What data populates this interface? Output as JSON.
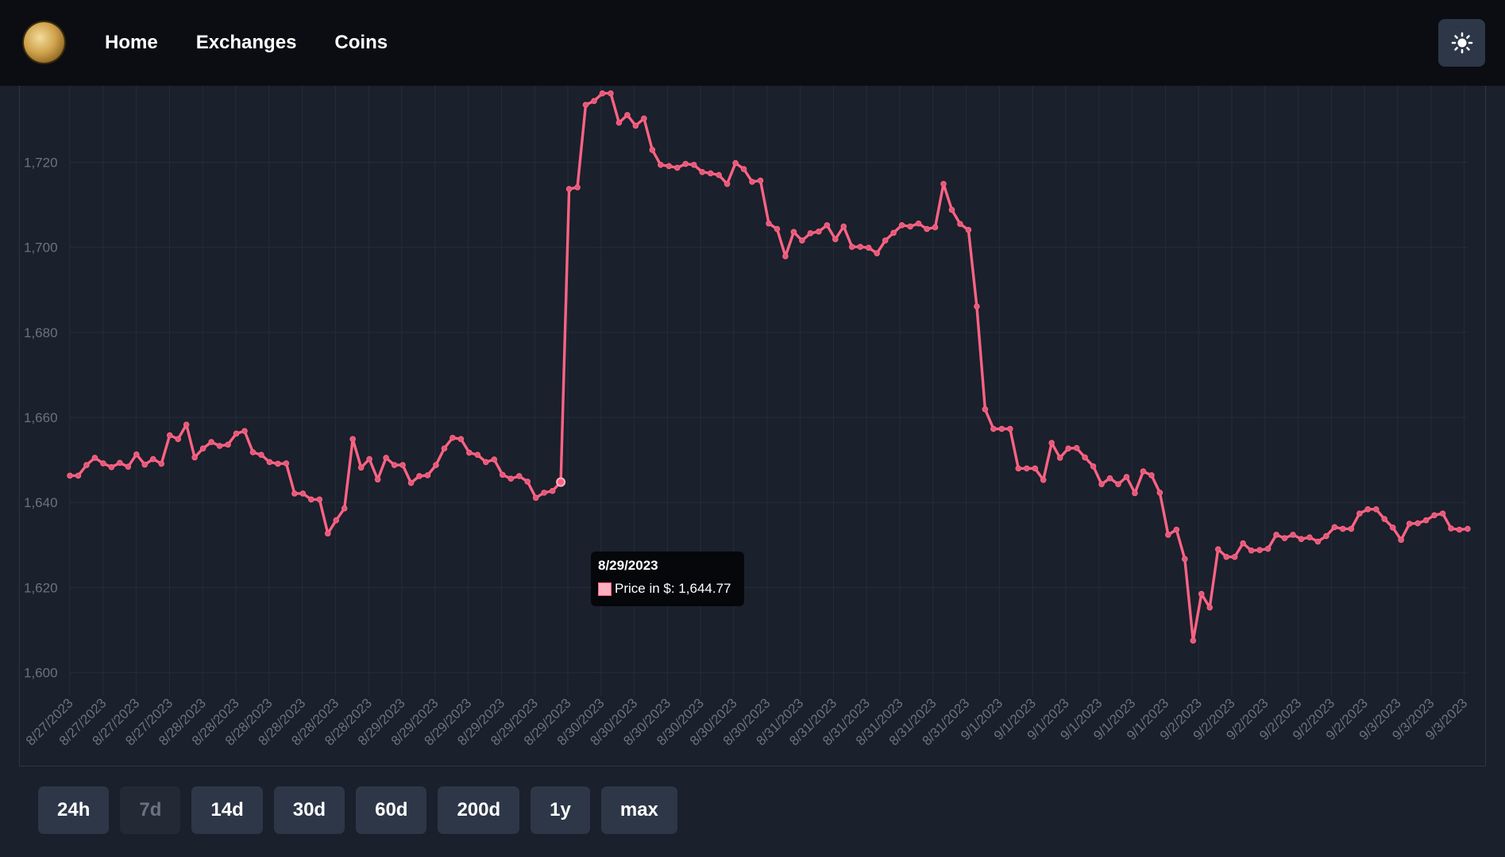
{
  "navbar": {
    "logo": "coin-logo-icon",
    "links": [
      "Home",
      "Exchanges",
      "Coins"
    ],
    "theme_toggle_icon": "sun-icon"
  },
  "chart_data": {
    "type": "line",
    "series": [
      {
        "name": "Price in $",
        "color": "#ff6384",
        "values": [
          1646.3,
          1646.3,
          1648.8,
          1650.5,
          1649.2,
          1648.3,
          1649.3,
          1648.4,
          1651.3,
          1648.9,
          1650.2,
          1649.1,
          1655.8,
          1654.9,
          1658.3,
          1650.6,
          1652.7,
          1654.2,
          1653.3,
          1653.6,
          1656.2,
          1656.8,
          1651.8,
          1651.2,
          1649.5,
          1649.1,
          1649.2,
          1642.1,
          1642.1,
          1640.7,
          1640.7,
          1632.7,
          1635.8,
          1638.6,
          1654.9,
          1648.2,
          1650.2,
          1645.4,
          1650.5,
          1648.8,
          1648.8,
          1644.6,
          1646.2,
          1646.4,
          1648.8,
          1652.7,
          1655.2,
          1654.9,
          1651.7,
          1651.2,
          1649.5,
          1650.1,
          1646.5,
          1645.6,
          1646.2,
          1644.9,
          1641.1,
          1642.3,
          1642.7,
          1644.8,
          1713.7,
          1714.1,
          1733.5,
          1734.4,
          1736.2,
          1736.2,
          1729.3,
          1731.1,
          1728.6,
          1730.3,
          1722.9,
          1719.4,
          1719.1,
          1718.7,
          1719.6,
          1719.4,
          1717.7,
          1717.4,
          1717.0,
          1714.9,
          1719.8,
          1718.4,
          1715.4,
          1715.7,
          1705.6,
          1704.3,
          1697.9,
          1703.6,
          1701.6,
          1703.3,
          1703.7,
          1705.2,
          1701.9,
          1704.9,
          1700.1,
          1700.1,
          1699.9,
          1698.6,
          1701.6,
          1703.4,
          1705.2,
          1704.9,
          1705.6,
          1704.3,
          1704.7,
          1714.9,
          1708.8,
          1705.5,
          1704.1,
          1686.1,
          1661.9,
          1657.3,
          1657.3,
          1657.3,
          1648.0,
          1648.0,
          1648.0,
          1645.3,
          1654.0,
          1650.5,
          1652.7,
          1652.8,
          1650.6,
          1648.5,
          1644.3,
          1645.7,
          1644.3,
          1646.0,
          1642.2,
          1647.3,
          1646.4,
          1642.3,
          1632.4,
          1633.6,
          1626.7,
          1607.5,
          1618.5,
          1615.3,
          1629.0,
          1627.2,
          1627.2,
          1630.4,
          1628.7,
          1628.8,
          1629.1,
          1632.4,
          1631.6,
          1632.4,
          1631.4,
          1631.8,
          1630.8,
          1632.1,
          1634.2,
          1633.8,
          1633.8,
          1637.4,
          1638.4,
          1638.4,
          1636.1,
          1634.1,
          1631.2,
          1635.0,
          1635.1,
          1635.8,
          1637.0,
          1637.4,
          1633.9,
          1633.6,
          1633.8
        ]
      }
    ],
    "x_labels": [
      "8/27/2023",
      "8/27/2023",
      "8/27/2023",
      "8/27/2023",
      "8/28/2023",
      "8/28/2023",
      "8/28/2023",
      "8/28/2023",
      "8/28/2023",
      "8/28/2023",
      "8/29/2023",
      "8/29/2023",
      "8/29/2023",
      "8/29/2023",
      "8/29/2023",
      "8/29/2023",
      "8/30/2023",
      "8/30/2023",
      "8/30/2023",
      "8/30/2023",
      "8/30/2023",
      "8/30/2023",
      "8/31/2023",
      "8/31/2023",
      "8/31/2023",
      "8/31/2023",
      "8/31/2023",
      "8/31/2023",
      "9/1/2023",
      "9/1/2023",
      "9/1/2023",
      "9/1/2023",
      "9/1/2023",
      "9/1/2023",
      "9/2/2023",
      "9/2/2023",
      "9/2/2023",
      "9/2/2023",
      "9/2/2023",
      "9/2/2023",
      "9/3/2023",
      "9/3/2023",
      "9/3/2023"
    ],
    "y_ticks": [
      "1,600",
      "1,620",
      "1,640",
      "1,660",
      "1,680",
      "1,700",
      "1,720"
    ],
    "ylim": [
      1596,
      1738
    ],
    "grid": true,
    "legend": "none",
    "tooltip": {
      "title": "8/29/2023",
      "label": "Price in $: 1,644.77",
      "point_index": 59
    }
  },
  "range_buttons": {
    "items": [
      "24h",
      "7d",
      "14d",
      "30d",
      "60d",
      "200d",
      "1y",
      "max"
    ],
    "active": "7d"
  }
}
